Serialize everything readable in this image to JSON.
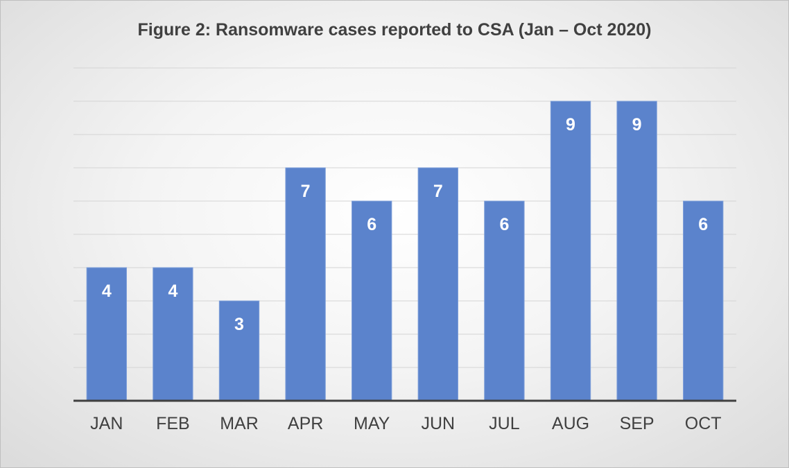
{
  "chart_data": {
    "type": "bar",
    "title": "Figure 2: Ransomware cases reported to CSA (Jan – Oct 2020)",
    "xlabel": "",
    "ylabel": "",
    "categories": [
      "JAN",
      "FEB",
      "MAR",
      "APR",
      "MAY",
      "JUN",
      "JUL",
      "AUG",
      "SEP",
      "OCT"
    ],
    "values": [
      4,
      4,
      3,
      7,
      6,
      7,
      6,
      9,
      9,
      6
    ],
    "ylim": [
      0,
      10
    ],
    "grid": true,
    "legend": "none",
    "colors": {
      "bar": "#5b83cc",
      "label": "#ffffff",
      "text": "#404040"
    }
  }
}
